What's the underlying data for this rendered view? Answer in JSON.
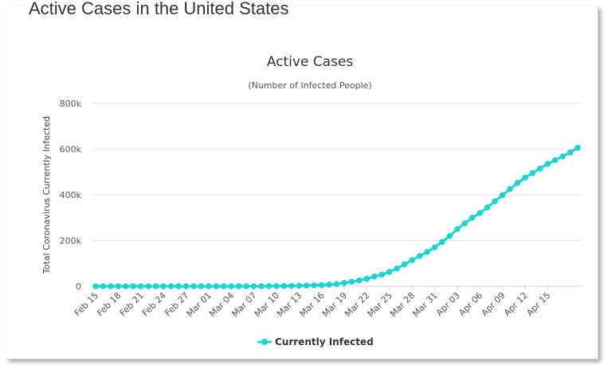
{
  "page": {
    "title": "Active Cases in the United States"
  },
  "chart_data": {
    "type": "line",
    "title": "Active Cases",
    "subtitle": "(Number of Infected People)",
    "xlabel": "",
    "ylabel": "Total Coronavirus Currently Infected",
    "ylim": [
      0,
      800000
    ],
    "y_ticks": [
      0,
      200000,
      400000,
      600000,
      800000
    ],
    "y_tick_labels": [
      "0",
      "200k",
      "400k",
      "600k",
      "800k"
    ],
    "x_tick_labels": [
      "Feb 15",
      "Feb 18",
      "Feb 21",
      "Feb 24",
      "Feb 27",
      "Mar 01",
      "Mar 04",
      "Mar 07",
      "Mar 10",
      "Mar 13",
      "Mar 16",
      "Mar 19",
      "Mar 22",
      "Mar 25",
      "Mar 28",
      "Mar 31",
      "Apr 03",
      "Apr 06",
      "Apr 09",
      "Apr 12",
      "Apr 15"
    ],
    "grid": true,
    "legend": "bottom-center",
    "colors": {
      "series": "#1dd3d3",
      "grid": "#e6e6e6",
      "axis": "#ccd6eb"
    },
    "series": [
      {
        "name": "Currently Infected",
        "start": "Feb 15",
        "values": [
          15,
          15,
          15,
          15,
          15,
          15,
          15,
          15,
          15,
          15,
          50,
          50,
          50,
          55,
          60,
          65,
          70,
          80,
          90,
          110,
          200,
          300,
          400,
          600,
          900,
          1300,
          1700,
          2400,
          3200,
          4200,
          5500,
          7500,
          10000,
          15000,
          20000,
          26000,
          33000,
          43000,
          51000,
          63000,
          78000,
          96000,
          114000,
          132000,
          150000,
          170000,
          194000,
          220000,
          250000,
          275000,
          300000,
          320000,
          345000,
          372000,
          398000,
          425000,
          452000,
          475000,
          495000,
          515000,
          535000,
          552000,
          568000,
          585000,
          606000
        ]
      }
    ]
  }
}
